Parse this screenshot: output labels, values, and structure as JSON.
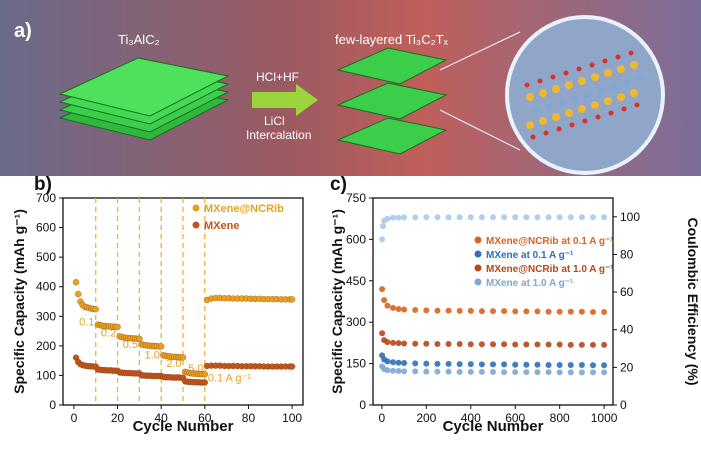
{
  "panel_a": {
    "label": "a)",
    "left_material": "Ti₃AlC₂",
    "right_material": "few-layered Ti₃C₂Tₓ",
    "arrow_top": "HCl+HF",
    "arrow_bottom_1": "LiCl",
    "arrow_bottom_2": "Intercalation",
    "colors": {
      "sheet": "#3ccd4a",
      "sheet_edge": "#1e8f2a",
      "arrow": "#9bd43c"
    }
  },
  "chart_data": [
    {
      "panel": "b)",
      "type": "scatter",
      "xlabel": "Cycle Number",
      "ylabel": "Specific Capacity (mAh g⁻¹)",
      "xlim": [
        -5,
        105
      ],
      "ylim": [
        0,
        700
      ],
      "xticks": [
        0,
        20,
        40,
        60,
        80,
        100
      ],
      "yticks": [
        0,
        100,
        200,
        300,
        400,
        500,
        600,
        700
      ],
      "legend": {
        "placement": "top-right",
        "entries": [
          "MXene@NCRib",
          "MXene"
        ]
      },
      "rate_labels": [
        "0.1",
        "0.2",
        "0.5",
        "1.0",
        "2.0",
        "5.0",
        "0.1 A g⁻¹"
      ],
      "rate_boundaries": [
        10,
        20,
        30,
        40,
        50,
        60
      ],
      "series": [
        {
          "name": "MXene@NCRib",
          "color": "#e8a020",
          "x": [
            1,
            2,
            3,
            4,
            5,
            6,
            7,
            8,
            9,
            10,
            11,
            12,
            13,
            14,
            15,
            16,
            17,
            18,
            19,
            20,
            21,
            22,
            23,
            24,
            25,
            26,
            27,
            28,
            29,
            30,
            31,
            32,
            33,
            34,
            35,
            36,
            37,
            38,
            39,
            40,
            41,
            42,
            43,
            44,
            45,
            46,
            47,
            48,
            49,
            50,
            51,
            52,
            53,
            54,
            55,
            56,
            57,
            58,
            59,
            60,
            61,
            63,
            65,
            67,
            69,
            71,
            73,
            75,
            77,
            79,
            81,
            83,
            85,
            87,
            89,
            91,
            93,
            95,
            97,
            99,
            100
          ],
          "y": [
            415,
            375,
            350,
            338,
            332,
            330,
            328,
            326,
            325,
            324,
            272,
            270,
            268,
            267,
            266,
            266,
            265,
            265,
            264,
            264,
            232,
            230,
            228,
            227,
            226,
            226,
            225,
            225,
            224,
            224,
            205,
            203,
            202,
            201,
            200,
            200,
            199,
            199,
            198,
            198,
            168,
            166,
            165,
            164,
            163,
            163,
            162,
            162,
            161,
            161,
            112,
            110,
            108,
            107,
            106,
            106,
            105,
            105,
            104,
            104,
            355,
            360,
            362,
            362,
            361,
            361,
            360,
            360,
            360,
            360,
            359,
            359,
            359,
            358,
            358,
            358,
            358,
            357,
            357,
            357,
            357
          ]
        },
        {
          "name": "MXene",
          "color": "#c0541c",
          "x": [
            1,
            2,
            3,
            4,
            5,
            6,
            7,
            8,
            9,
            10,
            11,
            12,
            13,
            14,
            15,
            16,
            17,
            18,
            19,
            20,
            21,
            22,
            23,
            24,
            25,
            26,
            27,
            28,
            29,
            30,
            31,
            32,
            33,
            34,
            35,
            36,
            37,
            38,
            39,
            40,
            41,
            42,
            43,
            44,
            45,
            46,
            47,
            48,
            49,
            50,
            51,
            52,
            53,
            54,
            55,
            56,
            57,
            58,
            59,
            60,
            61,
            63,
            65,
            67,
            69,
            71,
            73,
            75,
            77,
            79,
            81,
            83,
            85,
            87,
            89,
            91,
            93,
            95,
            97,
            99,
            100
          ],
          "y": [
            160,
            145,
            138,
            135,
            133,
            132,
            131,
            131,
            130,
            130,
            120,
            119,
            118,
            118,
            117,
            117,
            117,
            116,
            116,
            116,
            110,
            109,
            109,
            108,
            108,
            108,
            107,
            107,
            107,
            107,
            100,
            100,
            99,
            99,
            99,
            98,
            98,
            98,
            98,
            98,
            95,
            94,
            94,
            94,
            93,
            93,
            93,
            93,
            92,
            92,
            80,
            79,
            78,
            78,
            77,
            77,
            77,
            76,
            76,
            76,
            132,
            133,
            133,
            133,
            132,
            132,
            132,
            132,
            131,
            131,
            131,
            131,
            131,
            130,
            130,
            130,
            130,
            130,
            130,
            130,
            130
          ]
        }
      ]
    },
    {
      "panel": "c)",
      "type": "scatter",
      "xlabel": "Cycle Number",
      "ylabel": "Specific Capacity (mAh g⁻¹)",
      "y2label": "Coulombic Efficiency (%)",
      "xlim": [
        -40,
        1040
      ],
      "ylim": [
        0,
        750
      ],
      "y2lim": [
        0,
        110
      ],
      "xticks": [
        0,
        200,
        400,
        600,
        800,
        1000
      ],
      "yticks": [
        0,
        150,
        300,
        450,
        600,
        750
      ],
      "y2ticks": [
        0,
        20,
        40,
        60,
        80,
        100
      ],
      "legend": {
        "placement": "center-right",
        "entries": [
          "MXene@NCRib at 0.1 A g⁻¹",
          "MXene at 0.1 A g⁻¹",
          "MXene@NCRib at 1.0 A g⁻¹",
          "MXene at 1.0 A g⁻¹"
        ]
      },
      "series": [
        {
          "name": "MXene@NCRib at 0.1 A g⁻¹",
          "color": "#d9641c",
          "x": [
            1,
            10,
            25,
            50,
            75,
            100,
            150,
            200,
            250,
            300,
            350,
            400,
            450,
            500,
            550,
            600,
            650,
            700,
            750,
            800,
            850,
            900,
            950,
            1000
          ],
          "y": [
            420,
            380,
            360,
            352,
            348,
            346,
            344,
            343,
            342,
            342,
            341,
            341,
            340,
            340,
            340,
            339,
            339,
            339,
            338,
            338,
            338,
            338,
            337,
            337
          ]
        },
        {
          "name": "MXene at 0.1 A g⁻¹",
          "color": "#2e6fb5",
          "x": [
            1,
            10,
            25,
            50,
            75,
            100,
            150,
            200,
            250,
            300,
            350,
            400,
            450,
            500,
            550,
            600,
            650,
            700,
            750,
            800,
            850,
            900,
            950,
            1000
          ],
          "y": [
            180,
            165,
            158,
            155,
            153,
            152,
            151,
            150,
            149,
            149,
            148,
            148,
            147,
            147,
            147,
            146,
            146,
            146,
            145,
            145,
            145,
            145,
            144,
            144
          ]
        },
        {
          "name": "MXene@NCRib at 1.0 A g⁻¹",
          "color": "#b5471a",
          "x": [
            1,
            10,
            25,
            50,
            75,
            100,
            150,
            200,
            250,
            300,
            350,
            400,
            450,
            500,
            550,
            600,
            650,
            700,
            750,
            800,
            850,
            900,
            950,
            1000
          ],
          "y": [
            260,
            235,
            228,
            225,
            224,
            223,
            222,
            222,
            221,
            221,
            221,
            220,
            220,
            220,
            220,
            219,
            219,
            219,
            219,
            219,
            218,
            218,
            218,
            218
          ]
        },
        {
          "name": "MXene at 1.0 A g⁻¹",
          "color": "#7da7d6",
          "x": [
            1,
            10,
            25,
            50,
            75,
            100,
            150,
            200,
            250,
            300,
            350,
            400,
            450,
            500,
            550,
            600,
            650,
            700,
            750,
            800,
            850,
            900,
            950,
            1000
          ],
          "y": [
            140,
            130,
            126,
            124,
            123,
            122,
            122,
            121,
            121,
            121,
            120,
            120,
            120,
            120,
            119,
            119,
            119,
            119,
            119,
            118,
            118,
            118,
            118,
            118
          ]
        },
        {
          "name": "",
          "axis": "y2",
          "color": "#a9c9ea",
          "x": [
            1,
            5,
            10,
            25,
            50,
            75,
            100,
            150,
            200,
            250,
            300,
            350,
            400,
            450,
            500,
            550,
            600,
            650,
            700,
            750,
            800,
            850,
            900,
            950,
            1000
          ],
          "y": [
            88,
            95,
            98,
            99,
            99.5,
            99.6,
            99.7,
            99.7,
            99.8,
            99.8,
            99.8,
            99.8,
            99.8,
            99.8,
            99.8,
            99.8,
            99.8,
            99.8,
            99.8,
            99.8,
            99.8,
            99.8,
            99.8,
            99.8,
            99.8
          ]
        }
      ]
    }
  ]
}
